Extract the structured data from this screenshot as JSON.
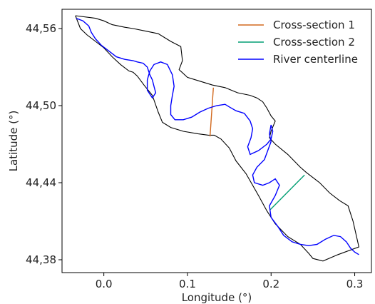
{
  "chart_data": {
    "type": "line",
    "xlabel": "Longitude (°)",
    "ylabel": "Latitude (°)",
    "xlim": [
      -0.05,
      0.32
    ],
    "ylim": [
      44.37,
      44.575
    ],
    "xticks": [
      0.0,
      0.1,
      0.2,
      0.3
    ],
    "xtick_labels": [
      "0.0",
      "0.1",
      "0.2",
      "0.3"
    ],
    "yticks": [
      44.38,
      44.44,
      44.5,
      44.56
    ],
    "ytick_labels": [
      "44,38",
      "44,44",
      "44,50",
      "44,56"
    ],
    "grid": false,
    "legend_position": "top-right",
    "colors": {
      "boundary": "#000000",
      "cross_section_1": "#d2691e",
      "cross_section_2": "#009e73",
      "centerline": "#0000ff"
    },
    "series": [
      {
        "name": "Cross-section 1",
        "color": "#d2691e",
        "x": [
          0.127,
          0.131
        ],
        "y": [
          44.476,
          44.514
        ]
      },
      {
        "name": "Cross-section 2",
        "color": "#009e73",
        "x": [
          0.199,
          0.24
        ],
        "y": [
          44.419,
          44.446
        ]
      },
      {
        "name": "River centerline",
        "color": "#0000ff",
        "x": [
          -0.033,
          -0.025,
          -0.018,
          -0.015,
          -0.01,
          -0.003,
          0.005,
          0.015,
          0.025,
          0.035,
          0.04,
          0.047,
          0.052,
          0.055,
          0.058,
          0.06,
          0.062,
          0.058,
          0.052,
          0.052,
          0.055,
          0.06,
          0.068,
          0.076,
          0.082,
          0.084,
          0.082,
          0.08,
          0.08,
          0.085,
          0.095,
          0.105,
          0.115,
          0.125,
          0.135,
          0.145,
          0.15,
          0.158,
          0.168,
          0.175,
          0.178,
          0.176,
          0.172,
          0.175,
          0.185,
          0.195,
          0.2,
          0.202,
          0.2,
          0.198,
          0.2,
          0.192,
          0.183,
          0.178,
          0.18,
          0.19,
          0.198,
          0.205,
          0.21,
          0.205,
          0.198,
          0.2,
          0.208,
          0.215,
          0.225,
          0.235,
          0.245,
          0.255,
          0.265,
          0.275,
          0.283,
          0.29,
          0.295,
          0.3,
          0.305
        ],
        "y": [
          44.568,
          44.566,
          44.562,
          44.557,
          44.552,
          44.547,
          44.543,
          44.538,
          44.536,
          44.535,
          44.534,
          44.533,
          44.53,
          44.524,
          44.52,
          44.515,
          44.51,
          44.506,
          44.512,
          44.52,
          44.527,
          44.532,
          44.534,
          44.532,
          44.524,
          44.515,
          44.508,
          44.5,
          44.493,
          44.489,
          44.489,
          44.491,
          44.495,
          44.498,
          44.5,
          44.501,
          44.499,
          44.496,
          44.494,
          44.488,
          44.482,
          44.475,
          44.468,
          44.462,
          44.465,
          44.47,
          44.474,
          44.48,
          44.485,
          44.478,
          44.472,
          44.458,
          44.452,
          44.446,
          44.44,
          44.438,
          44.44,
          44.443,
          44.438,
          44.43,
          44.422,
          44.413,
          44.406,
          44.399,
          44.394,
          44.392,
          44.391,
          44.392,
          44.396,
          44.399,
          44.398,
          44.394,
          44.389,
          44.386,
          44.384
        ]
      }
    ],
    "boundary": {
      "x": [
        -0.034,
        -0.01,
        0.0,
        0.01,
        0.025,
        0.035,
        0.05,
        0.065,
        0.08,
        0.092,
        0.094,
        0.09,
        0.1,
        0.115,
        0.13,
        0.145,
        0.16,
        0.175,
        0.183,
        0.19,
        0.195,
        0.2,
        0.205,
        0.2,
        0.198,
        0.205,
        0.22,
        0.235,
        0.242,
        0.258,
        0.27,
        0.282,
        0.292,
        0.298,
        0.305,
        0.28,
        0.262,
        0.25,
        0.245,
        0.235,
        0.22,
        0.205,
        0.195,
        0.185,
        0.17,
        0.158,
        0.15,
        0.14,
        0.132,
        0.125,
        0.113,
        0.095,
        0.08,
        0.07,
        0.065,
        0.058,
        0.048,
        0.04,
        0.035,
        0.03,
        0.02,
        0.01,
        0.0,
        -0.01,
        -0.02,
        -0.028,
        -0.034
      ],
      "y": [
        44.57,
        44.568,
        44.566,
        44.563,
        44.561,
        44.56,
        44.558,
        44.556,
        44.55,
        44.546,
        44.535,
        44.528,
        44.522,
        44.519,
        44.516,
        44.514,
        44.51,
        44.508,
        44.506,
        44.503,
        44.498,
        44.492,
        44.488,
        44.48,
        44.475,
        44.47,
        44.462,
        44.452,
        44.448,
        44.44,
        44.432,
        44.426,
        44.422,
        44.41,
        44.39,
        44.384,
        44.379,
        44.381,
        44.385,
        44.392,
        44.398,
        44.408,
        44.418,
        44.43,
        44.447,
        44.457,
        44.467,
        44.474,
        44.477,
        44.477,
        44.478,
        44.48,
        44.483,
        44.487,
        44.495,
        44.508,
        44.516,
        44.523,
        44.526,
        44.527,
        44.532,
        44.538,
        44.545,
        44.55,
        44.555,
        44.56,
        44.57
      ]
    }
  }
}
